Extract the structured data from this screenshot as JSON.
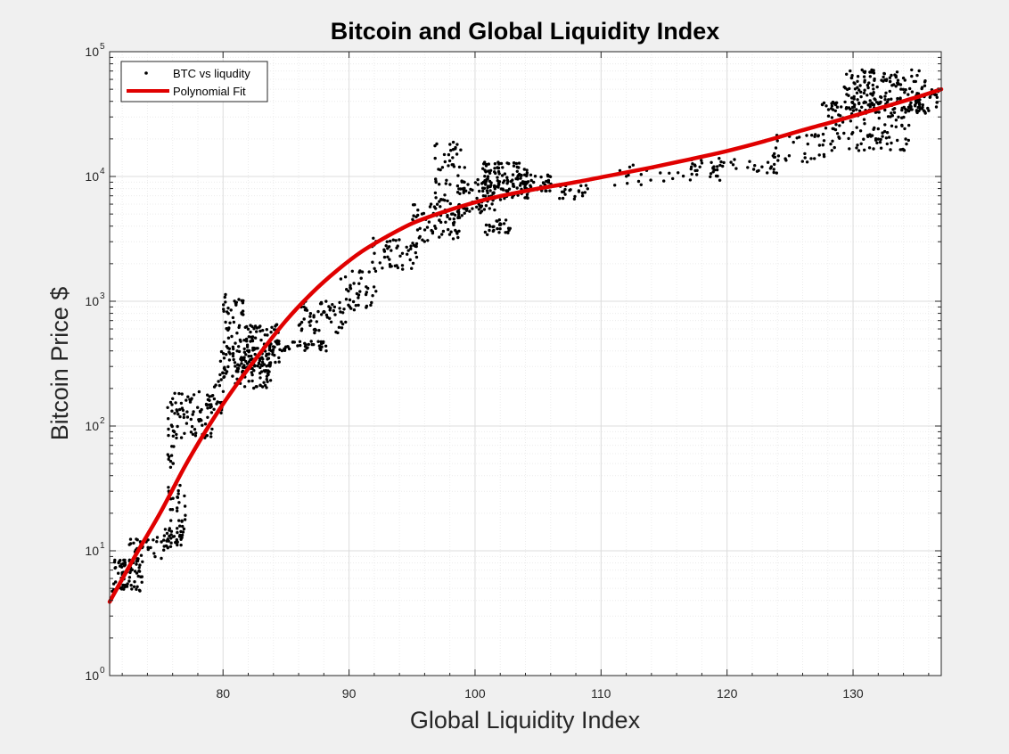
{
  "chart_data": {
    "type": "scatter",
    "title": "Bitcoin and Global Liquidity Index",
    "xlabel": "Global Liquidity Index",
    "ylabel": "Bitcoin Price $",
    "xlim": [
      71,
      137
    ],
    "ylim": [
      1,
      100000
    ],
    "yscale": "log",
    "grid": true,
    "minor_grid": true,
    "xticks": [
      80,
      90,
      100,
      110,
      120,
      130
    ],
    "xtick_labels": [
      "80",
      "90",
      "100",
      "110",
      "120",
      "130"
    ],
    "yticks": [
      1,
      10,
      100,
      1000,
      10000,
      100000
    ],
    "ytick_labels": [
      {
        "base": "10",
        "exp": "0"
      },
      {
        "base": "10",
        "exp": "1"
      },
      {
        "base": "10",
        "exp": "2"
      },
      {
        "base": "10",
        "exp": "3"
      },
      {
        "base": "10",
        "exp": "4"
      },
      {
        "base": "10",
        "exp": "5"
      }
    ],
    "legend": {
      "position": "top-left",
      "entries": [
        {
          "label": "BTC vs liqudity",
          "style": "markers",
          "color": "#000000"
        },
        {
          "label": "Polynomial Fit",
          "style": "line",
          "color": "#e00000"
        }
      ]
    },
    "series": [
      {
        "name": "BTC vs liqudity",
        "style": "markers",
        "color": "#000000",
        "clusters": [
          {
            "x": [
              71.2,
              73.6
            ],
            "y": [
              4.5,
              8.5
            ],
            "n": 70
          },
          {
            "x": [
              72.5,
              75.5
            ],
            "y": [
              8,
              13
            ],
            "n": 35
          },
          {
            "x": [
              75.3,
              76.8
            ],
            "y": [
              10.5,
              15
            ],
            "n": 30
          },
          {
            "x": [
              75.6,
              76.2
            ],
            "y": [
              15,
              70
            ],
            "n": 20
          },
          {
            "x": [
              76.2,
              77.1
            ],
            "y": [
              13,
              35
            ],
            "n": 25
          },
          {
            "x": [
              75.6,
              79.2
            ],
            "y": [
              80,
              190
            ],
            "n": 80
          },
          {
            "x": [
              78.8,
              80.2
            ],
            "y": [
              120,
              220
            ],
            "n": 20
          },
          {
            "x": [
              79.6,
              83.8
            ],
            "y": [
              200,
              420
            ],
            "n": 120
          },
          {
            "x": [
              80,
              81.6
            ],
            "y": [
              420,
              1150
            ],
            "n": 45
          },
          {
            "x": [
              81.5,
              84.5
            ],
            "y": [
              300,
              650
            ],
            "n": 80
          },
          {
            "x": [
              83.6,
              88.2
            ],
            "y": [
              400,
              480
            ],
            "n": 50
          },
          {
            "x": [
              86,
              90
            ],
            "y": [
              550,
              1000
            ],
            "n": 60
          },
          {
            "x": [
              89.2,
              92.2
            ],
            "y": [
              850,
              1800
            ],
            "n": 40
          },
          {
            "x": [
              91.8,
              95.5
            ],
            "y": [
              1800,
              3200
            ],
            "n": 50
          },
          {
            "x": [
              95,
              98.8
            ],
            "y": [
              3000,
              6000
            ],
            "n": 60
          },
          {
            "x": [
              96.8,
              99.2
            ],
            "y": [
              4500,
              19000
            ],
            "n": 60
          },
          {
            "x": [
              98.6,
              101.6
            ],
            "y": [
              5000,
              9500
            ],
            "n": 70
          },
          {
            "x": [
              100.6,
              104.2
            ],
            "y": [
              6500,
              13000
            ],
            "n": 120
          },
          {
            "x": [
              100.8,
              102.8
            ],
            "y": [
              3300,
              4500
            ],
            "n": 30
          },
          {
            "x": [
              103,
              106.2
            ],
            "y": [
              7500,
              10500
            ],
            "n": 50
          },
          {
            "x": [
              106.5,
              109
            ],
            "y": [
              6500,
              8500
            ],
            "n": 20
          },
          {
            "x": [
              110,
              120
            ],
            "y": [
              8500,
              13000
            ],
            "n": 35
          },
          {
            "x": [
              117,
              124
            ],
            "y": [
              10500,
              14000
            ],
            "n": 35
          },
          {
            "x": [
              123.6,
              128
            ],
            "y": [
              13000,
              22000
            ],
            "n": 35
          },
          {
            "x": [
              127.5,
              134.5
            ],
            "y": [
              16000,
              40000
            ],
            "n": 130
          },
          {
            "x": [
              129.3,
              135.8
            ],
            "y": [
              32000,
              72000
            ],
            "n": 170
          },
          {
            "x": [
              134.5,
              136.9
            ],
            "y": [
              32000,
              55000
            ],
            "n": 40
          }
        ]
      },
      {
        "name": "Polynomial Fit",
        "style": "line",
        "color": "#e00000",
        "x": [
          71,
          73,
          75,
          77,
          79,
          81,
          83,
          85,
          87,
          89,
          91,
          93,
          95,
          97,
          99,
          101,
          103,
          105,
          108,
          111,
          114,
          117,
          120,
          123,
          126,
          129,
          132,
          135,
          137
        ],
        "y": [
          3.9,
          9,
          20,
          48,
          105,
          210,
          390,
          700,
          1150,
          1750,
          2500,
          3300,
          4200,
          5000,
          5800,
          6600,
          7300,
          8000,
          9000,
          10300,
          11800,
          13700,
          16000,
          19200,
          23500,
          28500,
          35000,
          43000,
          50000
        ]
      }
    ]
  }
}
